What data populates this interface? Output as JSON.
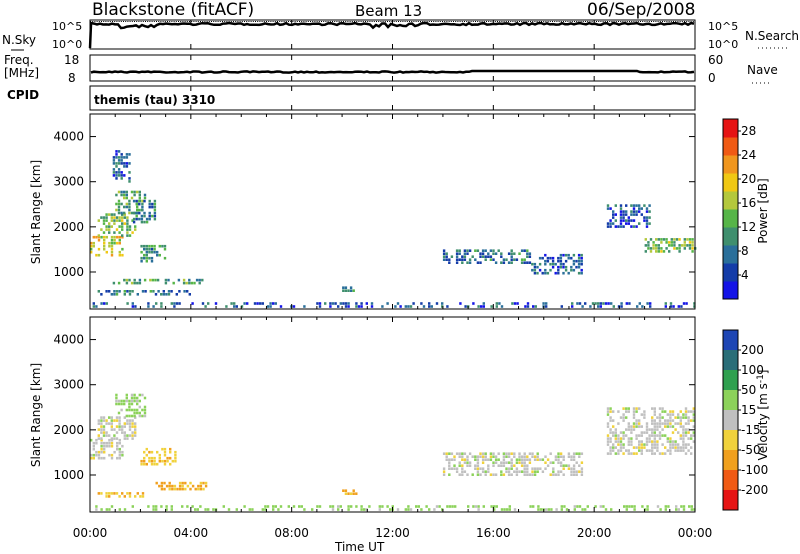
{
  "header": {
    "title": "Blackstone (fitACF)",
    "beam": "Beam 13",
    "date": "06/Sep/2008"
  },
  "panel_top": {
    "left_label": "N.Sky",
    "right_label": "N.Search",
    "ticks_left": [
      "10^5",
      "10^0"
    ],
    "ticks_right": [
      "10^5",
      "10^0"
    ]
  },
  "panel_freq": {
    "left_label_1": "Freq.",
    "left_label_2": "[MHz]",
    "right_label": "Nave",
    "ticks_left": [
      "18",
      "8"
    ],
    "ticks_right": [
      "60",
      "0"
    ]
  },
  "cpid": {
    "label": "CPID",
    "value": "themis (tau) 3310"
  },
  "colors": {
    "axis": "#000000",
    "ground_scatter": "#c0c0c0"
  },
  "chart_data": [
    {
      "type": "heatmap",
      "quantity": "Power",
      "ylabel": "Slant Range [km]",
      "xlabel": "Time UT",
      "xlim": [
        0,
        24
      ],
      "ylim": [
        180,
        4500
      ],
      "x_ticks": [
        "00:00",
        "04:00",
        "08:00",
        "12:00",
        "16:00",
        "20:00",
        "00:00"
      ],
      "y_ticks": [
        1000,
        2000,
        3000,
        4000
      ],
      "colorbar": {
        "label": "Power [dB]",
        "ticks": [
          4,
          8,
          12,
          16,
          20,
          24,
          28
        ],
        "range": [
          0,
          30
        ],
        "colors": [
          "#1414e6",
          "#143ca8",
          "#2a6f9a",
          "#3f8f6e",
          "#56b548",
          "#b4c83c",
          "#f0c814",
          "#f0961e",
          "#f05a14",
          "#e61414"
        ]
      },
      "features": [
        {
          "x": [
            0.0,
            1.3
          ],
          "range": [
            1350,
            1800
          ],
          "power": 18
        },
        {
          "x": [
            0.3,
            1.8
          ],
          "range": [
            1800,
            2300
          ],
          "power": 14
        },
        {
          "x": [
            1.0,
            2.2
          ],
          "range": [
            2300,
            2800
          ],
          "power": 12
        },
        {
          "x": [
            0.9,
            1.6
          ],
          "range": [
            3000,
            3700
          ],
          "power": 6
        },
        {
          "x": [
            1.7,
            2.6
          ],
          "range": [
            2100,
            2600
          ],
          "power": 8
        },
        {
          "x": [
            2.0,
            3.0
          ],
          "range": [
            1250,
            1600
          ],
          "power": 10
        },
        {
          "x": [
            0.3,
            4.0
          ],
          "range": [
            500,
            600
          ],
          "power": 8
        },
        {
          "x": [
            0.9,
            4.6
          ],
          "range": [
            750,
            850
          ],
          "power": 12
        },
        {
          "x": [
            10.0,
            10.6
          ],
          "range": [
            580,
            680
          ],
          "power": 10
        },
        {
          "x": [
            14.0,
            17.5
          ],
          "range": [
            1200,
            1500
          ],
          "power": 8
        },
        {
          "x": [
            17.5,
            19.5
          ],
          "range": [
            1000,
            1400
          ],
          "power": 6
        },
        {
          "x": [
            20.5,
            22.2
          ],
          "range": [
            2000,
            2500
          ],
          "power": 6
        },
        {
          "x": [
            22.0,
            24.0
          ],
          "range": [
            1450,
            1750
          ],
          "power": 14
        },
        {
          "x": [
            0.0,
            24.0
          ],
          "range": [
            200,
            330
          ],
          "power": 6
        }
      ]
    },
    {
      "type": "heatmap",
      "quantity": "Velocity",
      "ylabel": "Slant Range [km]",
      "xlabel": "Time UT",
      "xlim": [
        0,
        24
      ],
      "ylim": [
        180,
        4500
      ],
      "x_ticks": [
        "00:00",
        "04:00",
        "08:00",
        "12:00",
        "16:00",
        "20:00",
        "00:00"
      ],
      "y_ticks": [
        1000,
        2000,
        3000,
        4000
      ],
      "colorbar": {
        "label": "Velocity [m s^-1]",
        "ticks": [
          200,
          100,
          50,
          15,
          -15,
          -50,
          -100,
          -200
        ],
        "levels": [
          {
            "range": [
              200,
              250
            ],
            "color": "#1e46b4"
          },
          {
            "range": [
              100,
              200
            ],
            "color": "#2a6e78"
          },
          {
            "range": [
              50,
              100
            ],
            "color": "#2fa04f"
          },
          {
            "range": [
              15,
              50
            ],
            "color": "#8cd25a"
          },
          {
            "range": [
              -15,
              15
            ],
            "color": "#c0c0c0"
          },
          {
            "range": [
              -50,
              -15
            ],
            "color": "#f0d23c"
          },
          {
            "range": [
              -100,
              -50
            ],
            "color": "#f0a01e"
          },
          {
            "range": [
              -200,
              -100
            ],
            "color": "#f05a14"
          },
          {
            "range": [
              -250,
              -200
            ],
            "color": "#e61414"
          }
        ]
      },
      "features": [
        {
          "x": [
            0.0,
            1.3
          ],
          "range": [
            1350,
            1800
          ],
          "velocity": 0
        },
        {
          "x": [
            0.3,
            1.8
          ],
          "range": [
            1800,
            2300
          ],
          "velocity": 0
        },
        {
          "x": [
            1.0,
            2.2
          ],
          "range": [
            2300,
            2800
          ],
          "velocity": 30
        },
        {
          "x": [
            2.0,
            3.4
          ],
          "range": [
            1250,
            1600
          ],
          "velocity": -40
        },
        {
          "x": [
            0.3,
            2.2
          ],
          "range": [
            500,
            620
          ],
          "velocity": -40
        },
        {
          "x": [
            2.6,
            4.6
          ],
          "range": [
            680,
            850
          ],
          "velocity": -60
        },
        {
          "x": [
            10.0,
            10.6
          ],
          "range": [
            580,
            680
          ],
          "velocity": -60
        },
        {
          "x": [
            14.0,
            19.5
          ],
          "range": [
            1000,
            1500
          ],
          "velocity": 0
        },
        {
          "x": [
            20.5,
            24.0
          ],
          "range": [
            1450,
            2500
          ],
          "velocity": 0
        },
        {
          "x": [
            0.0,
            24.0
          ],
          "range": [
            200,
            330
          ],
          "velocity": 30
        }
      ]
    }
  ]
}
